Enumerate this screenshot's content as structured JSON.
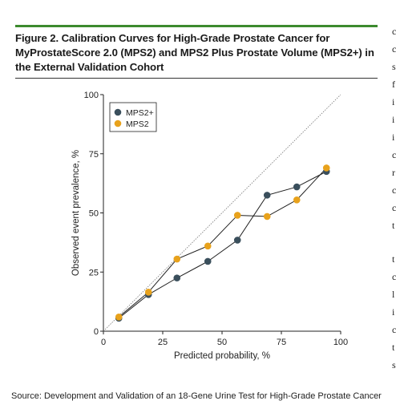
{
  "figure": {
    "title": "Figure 2. Calibration Curves for High-Grade Prostate Cancer for MyProstateScore 2.0 (MPS2) and MPS2 Plus Prostate Volume (MPS2+) in the External Validation Cohort",
    "accent_color": "#3c8a2e"
  },
  "chart_data": {
    "type": "line",
    "title": "",
    "xlabel": "Predicted probability, %",
    "ylabel": "Observed event prevalence, %",
    "xlim": [
      0,
      100
    ],
    "ylim": [
      0,
      100
    ],
    "xticks": [
      0,
      25,
      50,
      75,
      100
    ],
    "yticks": [
      0,
      25,
      50,
      75,
      100
    ],
    "grid": false,
    "reference_line": "diagonal y = x (dotted)",
    "legend_position": "top-left",
    "series": [
      {
        "name": "MPS2+",
        "color": "#3a4f5c",
        "x": [
          6.5,
          19,
          31,
          44,
          56.5,
          69,
          81.5,
          94
        ],
        "y": [
          5.5,
          15.5,
          22.5,
          29.5,
          38.5,
          57.5,
          61,
          67.5
        ]
      },
      {
        "name": "MPS2",
        "color": "#e8a21c",
        "x": [
          6.5,
          19,
          31,
          44,
          56.5,
          69,
          81.5,
          94
        ],
        "y": [
          6,
          16.5,
          30.5,
          36,
          49,
          48.5,
          55.5,
          69
        ]
      }
    ]
  },
  "source": "Source: Development and Validation of an 18-Gene Urine Test for High-Grade Prostate Cancer"
}
